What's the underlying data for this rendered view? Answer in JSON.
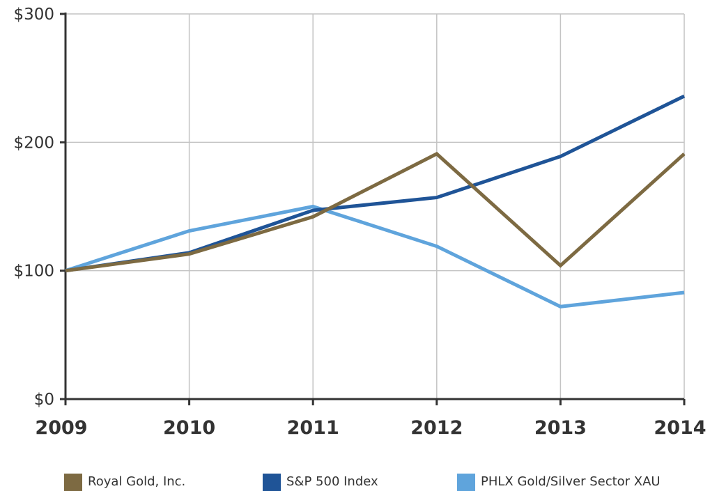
{
  "chart_data": {
    "type": "line",
    "x": [
      "2009",
      "2010",
      "2011",
      "2012",
      "2013",
      "2014"
    ],
    "y_ticks": [
      "$0",
      "$100",
      "$200",
      "$300"
    ],
    "y_tick_values": [
      0,
      100,
      200,
      300
    ],
    "ylim": [
      0,
      300
    ],
    "grid": true,
    "legend_position": "bottom",
    "series": [
      {
        "name": "Royal Gold, Inc.",
        "color": "#7d6a42",
        "values": [
          100,
          113,
          142,
          191,
          104,
          191
        ]
      },
      {
        "name": "S&P 500 Index",
        "color": "#1f5497",
        "values": [
          100,
          114,
          147,
          157,
          189,
          236
        ]
      },
      {
        "name": "PHLX Gold/Silver Sector XAU",
        "color": "#5fa4dc",
        "values": [
          100,
          131,
          150,
          119,
          72,
          83
        ]
      }
    ]
  }
}
